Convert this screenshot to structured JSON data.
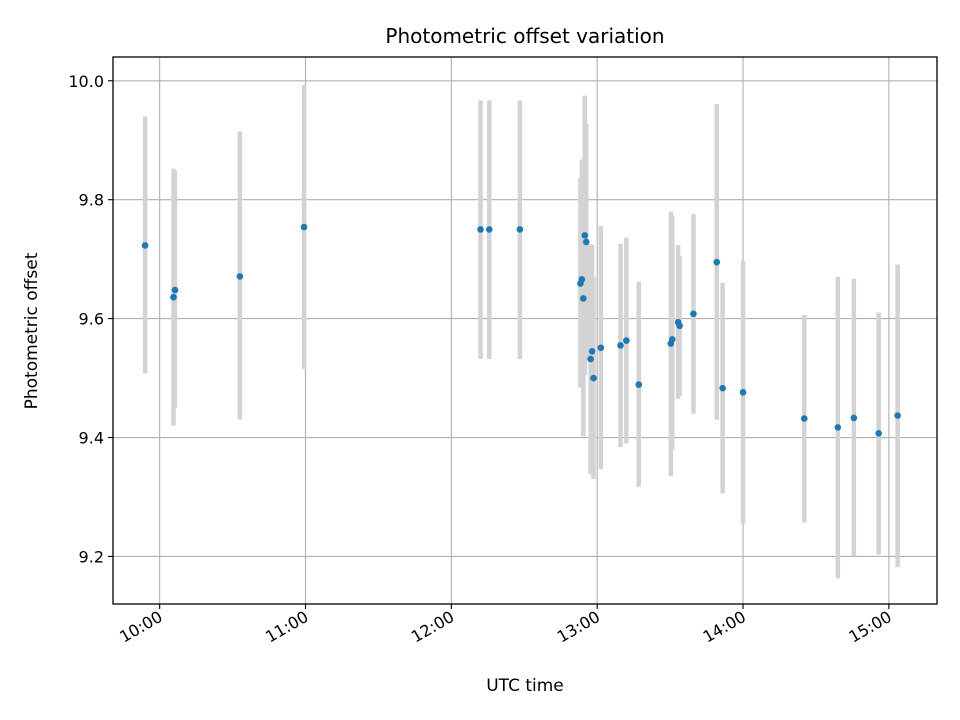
{
  "chart_data": {
    "type": "scatter",
    "title": "Photometric offset variation",
    "xlabel": "UTC time",
    "ylabel": "Photometric offset",
    "grid": true,
    "xlim_hours": [
      9.68,
      15.33
    ],
    "ylim": [
      9.12,
      10.04
    ],
    "x_ticks": [
      {
        "label": "10:00",
        "hour": 10.0
      },
      {
        "label": "11:00",
        "hour": 11.0
      },
      {
        "label": "12:00",
        "hour": 12.0
      },
      {
        "label": "13:00",
        "hour": 13.0
      },
      {
        "label": "14:00",
        "hour": 14.0
      },
      {
        "label": "15:00",
        "hour": 15.0
      }
    ],
    "y_ticks": [
      {
        "label": "9.2",
        "value": 9.2
      },
      {
        "label": "9.4",
        "value": 9.4
      },
      {
        "label": "9.6",
        "value": 9.6
      },
      {
        "label": "9.8",
        "value": 9.8
      },
      {
        "label": "10.0",
        "value": 10.0
      }
    ],
    "marker_color": "#1f77b4",
    "errorbar_color": "#d3d3d3",
    "points": [
      {
        "hour": 9.9,
        "y": 9.723,
        "lo": 9.508,
        "hi": 9.94
      },
      {
        "hour": 10.095,
        "y": 9.636,
        "lo": 9.42,
        "hi": 9.852
      },
      {
        "hour": 10.105,
        "y": 9.648,
        "lo": 9.45,
        "hi": 9.848
      },
      {
        "hour": 10.55,
        "y": 9.671,
        "lo": 9.43,
        "hi": 9.915
      },
      {
        "hour": 10.99,
        "y": 9.754,
        "lo": 9.515,
        "hi": 9.993
      },
      {
        "hour": 12.2,
        "y": 9.75,
        "lo": 9.532,
        "hi": 9.967
      },
      {
        "hour": 12.26,
        "y": 9.75,
        "lo": 9.532,
        "hi": 9.967
      },
      {
        "hour": 12.47,
        "y": 9.75,
        "lo": 9.532,
        "hi": 9.967
      },
      {
        "hour": 12.885,
        "y": 9.659,
        "lo": 9.484,
        "hi": 9.837
      },
      {
        "hour": 12.895,
        "y": 9.666,
        "lo": 9.49,
        "hi": 9.867
      },
      {
        "hour": 12.905,
        "y": 9.634,
        "lo": 9.402,
        "hi": 9.868
      },
      {
        "hour": 12.915,
        "y": 9.74,
        "lo": 9.505,
        "hi": 9.975
      },
      {
        "hour": 12.925,
        "y": 9.729,
        "lo": 9.53,
        "hi": 9.928
      },
      {
        "hour": 12.955,
        "y": 9.532,
        "lo": 9.338,
        "hi": 9.725
      },
      {
        "hour": 12.965,
        "y": 9.545,
        "lo": 9.34,
        "hi": 9.724
      },
      {
        "hour": 12.975,
        "y": 9.5,
        "lo": 9.33,
        "hi": 9.67
      },
      {
        "hour": 13.025,
        "y": 9.551,
        "lo": 9.347,
        "hi": 9.756
      },
      {
        "hour": 13.16,
        "y": 9.555,
        "lo": 9.384,
        "hi": 9.726
      },
      {
        "hour": 13.2,
        "y": 9.563,
        "lo": 9.39,
        "hi": 9.736
      },
      {
        "hour": 13.285,
        "y": 9.489,
        "lo": 9.317,
        "hi": 9.662
      },
      {
        "hour": 13.505,
        "y": 9.558,
        "lo": 9.335,
        "hi": 9.78
      },
      {
        "hour": 13.515,
        "y": 9.565,
        "lo": 9.38,
        "hi": 9.773
      },
      {
        "hour": 13.555,
        "y": 9.594,
        "lo": 9.465,
        "hi": 9.724
      },
      {
        "hour": 13.565,
        "y": 9.588,
        "lo": 9.47,
        "hi": 9.705
      },
      {
        "hour": 13.66,
        "y": 9.608,
        "lo": 9.44,
        "hi": 9.776
      },
      {
        "hour": 13.82,
        "y": 9.695,
        "lo": 9.43,
        "hi": 9.961
      },
      {
        "hour": 13.86,
        "y": 9.483,
        "lo": 9.306,
        "hi": 9.66
      },
      {
        "hour": 14.0,
        "y": 9.476,
        "lo": 9.255,
        "hi": 9.697
      },
      {
        "hour": 14.42,
        "y": 9.432,
        "lo": 9.257,
        "hi": 9.606
      },
      {
        "hour": 14.65,
        "y": 9.417,
        "lo": 9.163,
        "hi": 9.67
      },
      {
        "hour": 14.76,
        "y": 9.433,
        "lo": 9.2,
        "hi": 9.667
      },
      {
        "hour": 14.93,
        "y": 9.407,
        "lo": 9.203,
        "hi": 9.61
      },
      {
        "hour": 15.06,
        "y": 9.437,
        "lo": 9.182,
        "hi": 9.691
      }
    ]
  }
}
